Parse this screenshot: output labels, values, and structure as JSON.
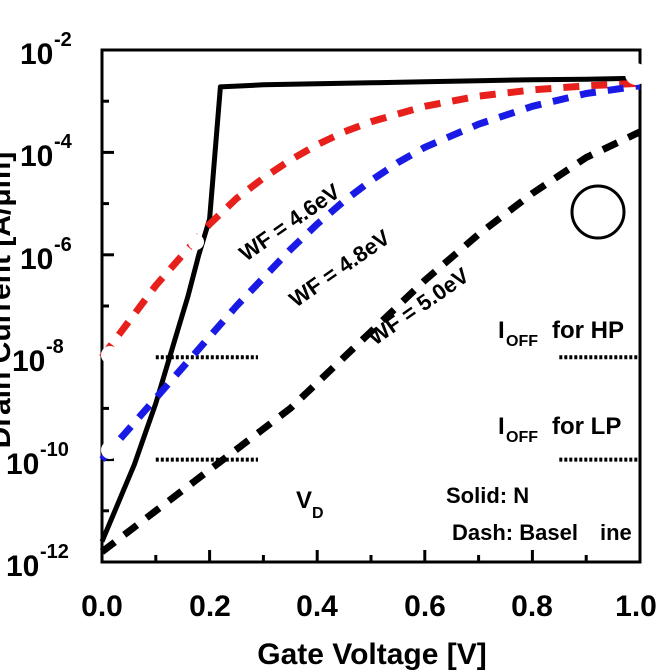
{
  "chart_data": {
    "type": "line",
    "title": "",
    "xlabel": "Gate Voltage [V]",
    "ylabel": "Drain Current [A/μm]",
    "xlim": [
      0.0,
      1.0
    ],
    "ylim_log10": [
      -12,
      -2
    ],
    "y_scale": "log",
    "x_ticks": [
      "0.0",
      "0.2",
      "0.4",
      "0.6",
      "0.8",
      "1.0"
    ],
    "y_tick_exponents": [
      "-2",
      "-4",
      "-6",
      "-8",
      "-10",
      "-12"
    ],
    "y_tick_base": "10",
    "grid": false,
    "series": [
      {
        "color": "#000000",
        "style": "solid",
        "x": [
          0.0,
          0.02,
          0.04,
          0.06,
          0.08,
          0.1,
          0.12,
          0.14,
          0.16,
          0.18,
          0.2,
          0.22,
          0.3,
          0.4,
          0.5,
          0.6,
          0.7,
          0.8,
          0.9,
          1.0
        ],
        "y_log10": [
          -11.6,
          -11.1,
          -10.6,
          -10.1,
          -9.5,
          -8.9,
          -8.2,
          -7.5,
          -6.8,
          -6.0,
          -5.3,
          -2.72,
          -2.68,
          -2.66,
          -2.64,
          -2.62,
          -2.6,
          -2.58,
          -2.57,
          -2.55
        ]
      },
      {
        "name": "WF = 4.6eV",
        "color": "#e8201c",
        "style": "dashed",
        "x": [
          0.0,
          0.05,
          0.1,
          0.15,
          0.2,
          0.25,
          0.3,
          0.35,
          0.4,
          0.45,
          0.5,
          0.6,
          0.7,
          0.8,
          0.9,
          1.0
        ],
        "y_log10": [
          -8.0,
          -7.3,
          -6.6,
          -6.0,
          -5.4,
          -4.9,
          -4.5,
          -4.15,
          -3.85,
          -3.6,
          -3.4,
          -3.1,
          -2.9,
          -2.78,
          -2.7,
          -2.65
        ]
      },
      {
        "name": "WF = 4.8eV",
        "color": "#1a1ae6",
        "style": "dashed",
        "x": [
          0.0,
          0.05,
          0.1,
          0.15,
          0.2,
          0.25,
          0.3,
          0.35,
          0.4,
          0.45,
          0.5,
          0.55,
          0.6,
          0.7,
          0.8,
          0.9,
          1.0
        ],
        "y_log10": [
          -10.0,
          -9.4,
          -8.8,
          -8.2,
          -7.6,
          -7.0,
          -6.45,
          -5.9,
          -5.4,
          -4.95,
          -4.55,
          -4.2,
          -3.9,
          -3.45,
          -3.1,
          -2.85,
          -2.7
        ]
      },
      {
        "name": "WF = 5.0eV",
        "color": "#000000",
        "style": "dashed",
        "x": [
          0.0,
          0.05,
          0.1,
          0.15,
          0.2,
          0.25,
          0.3,
          0.35,
          0.4,
          0.45,
          0.5,
          0.55,
          0.6,
          0.7,
          0.8,
          0.9,
          1.0
        ],
        "y_log10": [
          -11.8,
          -11.4,
          -11.0,
          -10.6,
          -10.2,
          -9.8,
          -9.4,
          -9.0,
          -8.5,
          -8.0,
          -7.5,
          -7.0,
          -6.5,
          -5.6,
          -4.8,
          -4.1,
          -3.6
        ]
      }
    ],
    "annotations": [
      {
        "text": "WF = 4.6eV",
        "x": 0.38,
        "y_log10": -5.7,
        "angle": -35
      },
      {
        "text": "WF = 4.8eV",
        "x": 0.5,
        "y_log10": -6.8,
        "angle": -35
      },
      {
        "text": "WF = 5.0eV",
        "x": 0.67,
        "y_log10": -8.3,
        "angle": -35
      }
    ],
    "reference_lines": [
      {
        "label_main": "I",
        "label_sub": "OFF",
        "label_tail": "for HP",
        "y_log10": -8.0
      },
      {
        "label_main": "I",
        "label_sub": "OFF",
        "label_tail": "for LP",
        "y_log10": -10.0
      }
    ],
    "legend_fragments": {
      "vd_main": "V",
      "vd_sub": "D",
      "solid": "Solid: N",
      "dash": "Dash: Basel",
      "dash_tail": "ine"
    }
  }
}
